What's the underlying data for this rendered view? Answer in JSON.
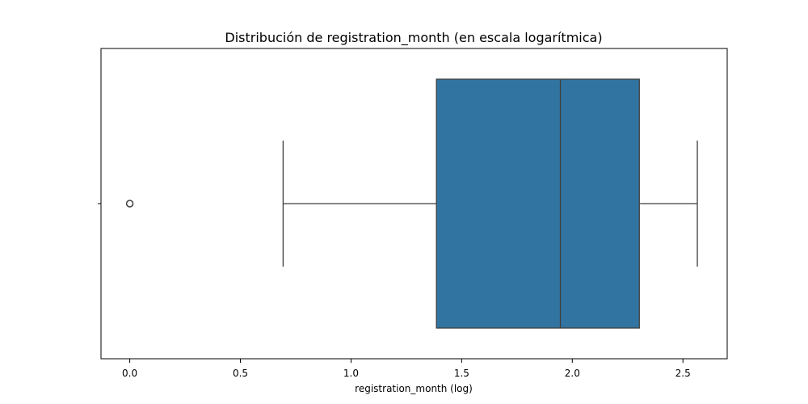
{
  "chart_data": {
    "type": "box",
    "title": "Distribución de registration_month (en escala logarítmica)",
    "xlabel": "registration_month (log)",
    "ylabel": "",
    "xlim": [
      -0.13,
      2.7
    ],
    "xticks": [
      0.0,
      0.5,
      1.0,
      1.5,
      2.0,
      2.5
    ],
    "xtick_labels": [
      "0.0",
      "0.5",
      "1.0",
      "1.5",
      "2.0",
      "2.5"
    ],
    "orientation": "horizontal",
    "grid": false,
    "box": {
      "whisker_low": 0.693,
      "q1": 1.386,
      "median": 1.946,
      "q3": 2.303,
      "whisker_high": 2.565,
      "outliers": [
        0.0
      ]
    },
    "colors": {
      "box_fill": "#3274a1",
      "line": "#3f3f3f"
    }
  }
}
